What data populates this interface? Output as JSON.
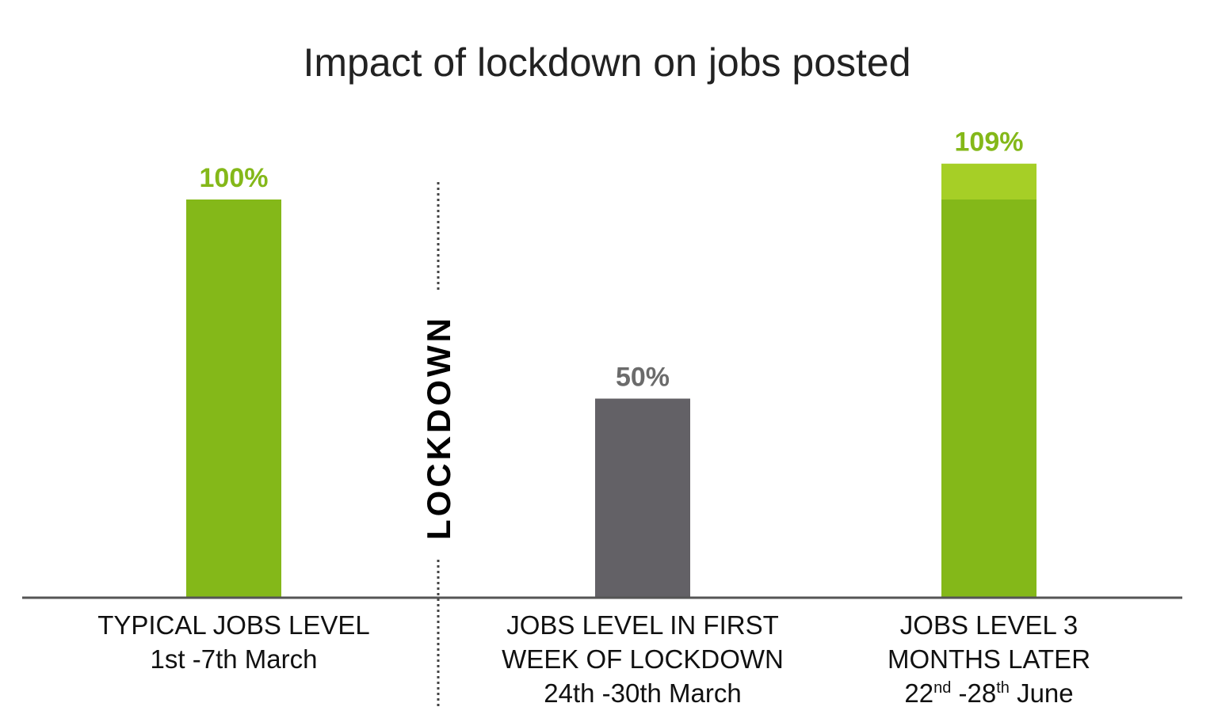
{
  "chart_data": {
    "type": "bar",
    "title": "Impact of lockdown on jobs posted",
    "categories": [
      [
        "TYPICAL JOBS LEVEL",
        "1st -7th March"
      ],
      [
        "JOBS LEVEL IN FIRST",
        "WEEK OF LOCKDOWN",
        "24th -30th March"
      ],
      [
        "JOBS LEVEL 3",
        "MONTHS LATER",
        "22nd -28th June"
      ]
    ],
    "values": [
      100,
      50,
      109
    ],
    "value_labels": [
      "100%",
      "50%",
      "109%"
    ],
    "unit": "%",
    "bar_colors": [
      "#84b819",
      "#636166",
      "#84b819"
    ],
    "excess_color": "#a6cf26",
    "label_colors": [
      "#84b819",
      "#6b6b6b",
      "#84b819"
    ],
    "annotation": "LOCKDOWN",
    "ylim": [
      0,
      115
    ],
    "grid": false,
    "legend": "none"
  }
}
